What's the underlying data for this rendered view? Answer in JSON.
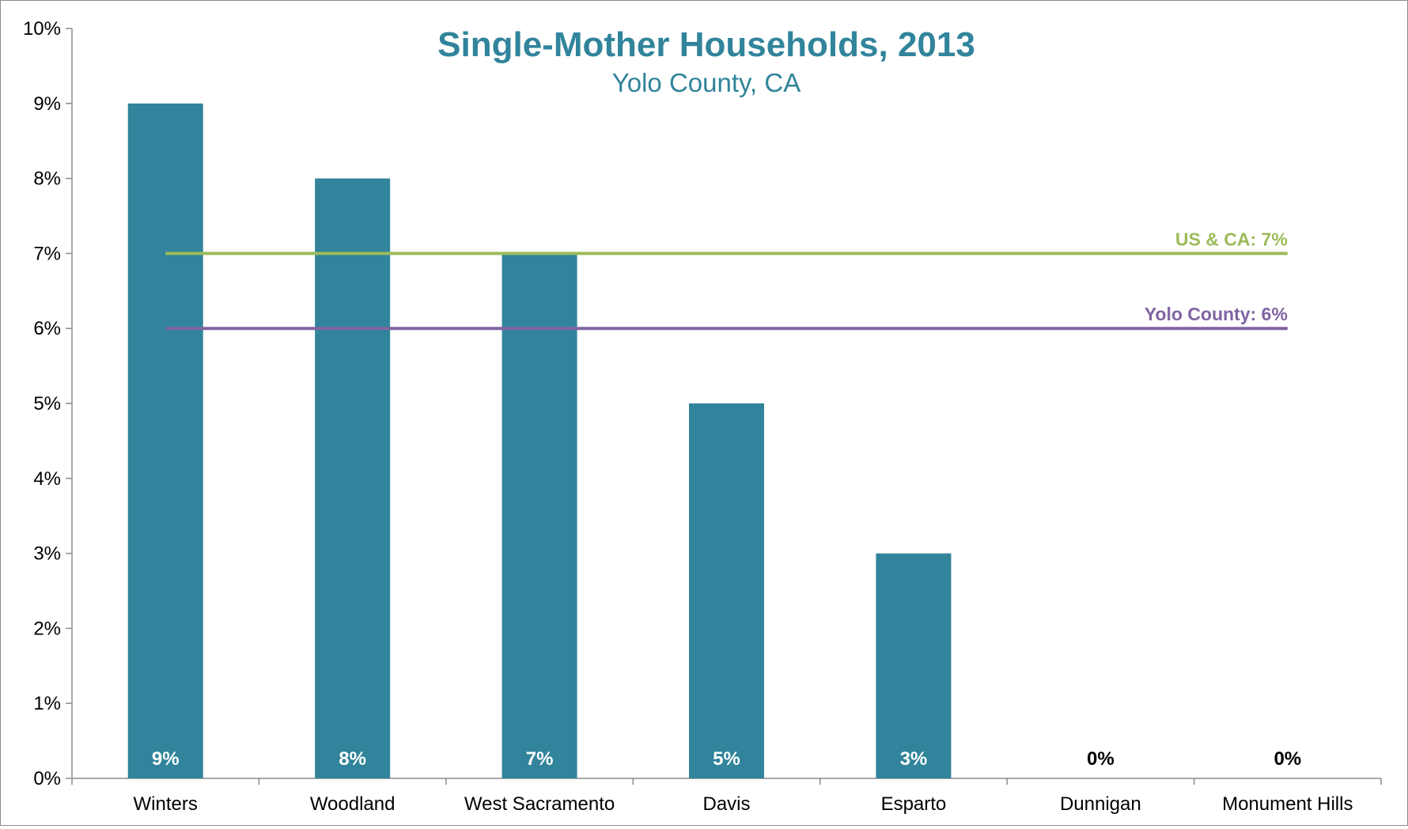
{
  "chart_data": {
    "type": "bar",
    "title": "Single-Mother Households, 2013",
    "subtitle": "Yolo County, CA",
    "categories": [
      "Winters",
      "Woodland",
      "West Sacramento",
      "Davis",
      "Esparto",
      "Dunnigan",
      "Monument Hills"
    ],
    "values": [
      9,
      8,
      7,
      5,
      3,
      0,
      0
    ],
    "data_labels": [
      "9%",
      "8%",
      "7%",
      "5%",
      "3%",
      "0%",
      "0%"
    ],
    "ylim": [
      0,
      10
    ],
    "yticks": [
      "0%",
      "1%",
      "2%",
      "3%",
      "4%",
      "5%",
      "6%",
      "7%",
      "8%",
      "9%",
      "10%"
    ],
    "reference_lines": [
      {
        "label": "US & CA: 7%",
        "value": 7,
        "color": "#9bbb59"
      },
      {
        "label": "Yolo County: 6%",
        "value": 6,
        "color": "#8064a2"
      }
    ],
    "bar_color": "#31849b",
    "grid": false
  }
}
